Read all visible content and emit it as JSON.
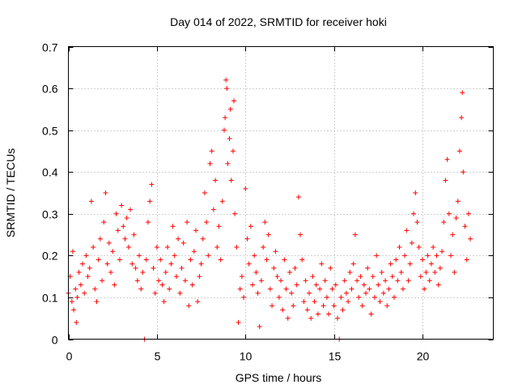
{
  "chart_data": {
    "type": "scatter",
    "title": "Day 014 of 2022, SRMTID for receiver hoki",
    "xlabel": "GPS time / hours",
    "ylabel": "SRMTID / TECUs",
    "xlim": [
      0,
      24
    ],
    "ylim": [
      0,
      0.7
    ],
    "xticks": [
      0,
      5,
      10,
      15,
      20
    ],
    "xtick_labels": [
      "0",
      "5",
      "10",
      "15",
      "20"
    ],
    "yticks": [
      0,
      0.1,
      0.2,
      0.3,
      0.4,
      0.5,
      0.6,
      0.7
    ],
    "ytick_labels": [
      "0",
      "0.1",
      "0.2",
      "0.3",
      "0.4",
      "0.5",
      "0.6",
      "0.7"
    ],
    "grid": true,
    "marker": "plus",
    "color": "#ff0000",
    "series": [
      {
        "name": "SRMTID",
        "points": [
          [
            0.0,
            0.11
          ],
          [
            0.1,
            0.15
          ],
          [
            0.2,
            0.09
          ],
          [
            0.25,
            0.21
          ],
          [
            0.3,
            0.07
          ],
          [
            0.4,
            0.12
          ],
          [
            0.45,
            0.04
          ],
          [
            0.5,
            0.1
          ],
          [
            0.6,
            0.16
          ],
          [
            0.7,
            0.13
          ],
          [
            0.8,
            0.18
          ],
          [
            0.9,
            0.11
          ],
          [
            1.0,
            0.2
          ],
          [
            1.1,
            0.15
          ],
          [
            1.2,
            0.17
          ],
          [
            1.3,
            0.33
          ],
          [
            1.4,
            0.22
          ],
          [
            1.5,
            0.12
          ],
          [
            1.6,
            0.09
          ],
          [
            1.7,
            0.19
          ],
          [
            1.8,
            0.24
          ],
          [
            1.9,
            0.14
          ],
          [
            2.0,
            0.28
          ],
          [
            2.1,
            0.35
          ],
          [
            2.2,
            0.18
          ],
          [
            2.3,
            0.23
          ],
          [
            2.4,
            0.16
          ],
          [
            2.5,
            0.21
          ],
          [
            2.6,
            0.13
          ],
          [
            2.7,
            0.3
          ],
          [
            2.8,
            0.26
          ],
          [
            2.9,
            0.19
          ],
          [
            3.0,
            0.32
          ],
          [
            3.1,
            0.27
          ],
          [
            3.2,
            0.24
          ],
          [
            3.3,
            0.29
          ],
          [
            3.4,
            0.22
          ],
          [
            3.5,
            0.31
          ],
          [
            3.6,
            0.18
          ],
          [
            3.7,
            0.25
          ],
          [
            3.8,
            0.17
          ],
          [
            3.9,
            0.14
          ],
          [
            4.0,
            0.2
          ],
          [
            4.1,
            0.12
          ],
          [
            4.2,
            0.16
          ],
          [
            4.3,
            0.0
          ],
          [
            4.4,
            0.19
          ],
          [
            4.5,
            0.28
          ],
          [
            4.6,
            0.33
          ],
          [
            4.7,
            0.37
          ],
          [
            4.8,
            0.17
          ],
          [
            4.9,
            0.11
          ],
          [
            5.0,
            0.22
          ],
          [
            5.1,
            0.14
          ],
          [
            5.2,
            0.19
          ],
          [
            5.3,
            0.13
          ],
          [
            5.4,
            0.09
          ],
          [
            5.5,
            0.16
          ],
          [
            5.6,
            0.22
          ],
          [
            5.7,
            0.12
          ],
          [
            5.8,
            0.18
          ],
          [
            5.9,
            0.27
          ],
          [
            6.0,
            0.2
          ],
          [
            6.1,
            0.15
          ],
          [
            6.2,
            0.24
          ],
          [
            6.3,
            0.11
          ],
          [
            6.4,
            0.17
          ],
          [
            6.5,
            0.23
          ],
          [
            6.6,
            0.14
          ],
          [
            6.7,
            0.28
          ],
          [
            6.8,
            0.08
          ],
          [
            6.9,
            0.19
          ],
          [
            7.0,
            0.13
          ],
          [
            7.1,
            0.21
          ],
          [
            7.2,
            0.26
          ],
          [
            7.3,
            0.09
          ],
          [
            7.4,
            0.15
          ],
          [
            7.5,
            0.18
          ],
          [
            7.6,
            0.24
          ],
          [
            7.7,
            0.35
          ],
          [
            7.8,
            0.28
          ],
          [
            7.9,
            0.2
          ],
          [
            8.0,
            0.42
          ],
          [
            8.1,
            0.45
          ],
          [
            8.2,
            0.31
          ],
          [
            8.3,
            0.38
          ],
          [
            8.4,
            0.22
          ],
          [
            8.5,
            0.27
          ],
          [
            8.6,
            0.19
          ],
          [
            8.7,
            0.33
          ],
          [
            8.8,
            0.5
          ],
          [
            8.85,
            0.53
          ],
          [
            8.9,
            0.62
          ],
          [
            8.95,
            0.6
          ],
          [
            9.0,
            0.42
          ],
          [
            9.1,
            0.48
          ],
          [
            9.15,
            0.55
          ],
          [
            9.2,
            0.38
          ],
          [
            9.3,
            0.45
          ],
          [
            9.35,
            0.57
          ],
          [
            9.4,
            0.3
          ],
          [
            9.5,
            0.22
          ],
          [
            9.6,
            0.04
          ],
          [
            9.7,
            0.12
          ],
          [
            9.8,
            0.15
          ],
          [
            9.9,
            0.1
          ],
          [
            10.0,
            0.36
          ],
          [
            10.1,
            0.24
          ],
          [
            10.2,
            0.18
          ],
          [
            10.3,
            0.27
          ],
          [
            10.4,
            0.13
          ],
          [
            10.5,
            0.2
          ],
          [
            10.6,
            0.16
          ],
          [
            10.7,
            0.11
          ],
          [
            10.8,
            0.03
          ],
          [
            10.9,
            0.14
          ],
          [
            11.0,
            0.22
          ],
          [
            11.1,
            0.28
          ],
          [
            11.2,
            0.19
          ],
          [
            11.3,
            0.25
          ],
          [
            11.4,
            0.12
          ],
          [
            11.5,
            0.08
          ],
          [
            11.6,
            0.17
          ],
          [
            11.7,
            0.21
          ],
          [
            11.8,
            0.15
          ],
          [
            11.9,
            0.1
          ],
          [
            12.0,
            0.14
          ],
          [
            12.1,
            0.07
          ],
          [
            12.2,
            0.19
          ],
          [
            12.3,
            0.12
          ],
          [
            12.4,
            0.05
          ],
          [
            12.5,
            0.16
          ],
          [
            12.6,
            0.11
          ],
          [
            12.7,
            0.08
          ],
          [
            12.8,
            0.17
          ],
          [
            12.9,
            0.13
          ],
          [
            13.0,
            0.34
          ],
          [
            13.1,
            0.25
          ],
          [
            13.2,
            0.19
          ],
          [
            13.3,
            0.09
          ],
          [
            13.4,
            0.14
          ],
          [
            13.5,
            0.07
          ],
          [
            13.6,
            0.11
          ],
          [
            13.7,
            0.05
          ],
          [
            13.8,
            0.15
          ],
          [
            13.9,
            0.09
          ],
          [
            14.0,
            0.13
          ],
          [
            14.1,
            0.06
          ],
          [
            14.2,
            0.12
          ],
          [
            14.3,
            0.18
          ],
          [
            14.4,
            0.08
          ],
          [
            14.5,
            0.14
          ],
          [
            14.6,
            0.1
          ],
          [
            14.7,
            0.06
          ],
          [
            14.8,
            0.17
          ],
          [
            14.9,
            0.12
          ],
          [
            15.0,
            0.08
          ],
          [
            15.1,
            0.13
          ],
          [
            15.2,
            0.05
          ],
          [
            15.3,
            0.0
          ],
          [
            15.4,
            0.1
          ],
          [
            15.5,
            0.07
          ],
          [
            15.6,
            0.14
          ],
          [
            15.7,
            0.11
          ],
          [
            15.8,
            0.09
          ],
          [
            15.9,
            0.16
          ],
          [
            16.0,
            0.12
          ],
          [
            16.1,
            0.18
          ],
          [
            16.2,
            0.25
          ],
          [
            16.3,
            0.14
          ],
          [
            16.4,
            0.1
          ],
          [
            16.5,
            0.15
          ],
          [
            16.6,
            0.08
          ],
          [
            16.7,
            0.13
          ],
          [
            16.8,
            0.11
          ],
          [
            16.9,
            0.17
          ],
          [
            17.0,
            0.12
          ],
          [
            17.1,
            0.06
          ],
          [
            17.2,
            0.15
          ],
          [
            17.3,
            0.1
          ],
          [
            17.4,
            0.2
          ],
          [
            17.5,
            0.13
          ],
          [
            17.6,
            0.09
          ],
          [
            17.7,
            0.16
          ],
          [
            17.8,
            0.11
          ],
          [
            17.9,
            0.14
          ],
          [
            18.0,
            0.08
          ],
          [
            18.1,
            0.12
          ],
          [
            18.2,
            0.18
          ],
          [
            18.3,
            0.15
          ],
          [
            18.4,
            0.1
          ],
          [
            18.5,
            0.19
          ],
          [
            18.6,
            0.14
          ],
          [
            18.7,
            0.22
          ],
          [
            18.8,
            0.16
          ],
          [
            18.9,
            0.12
          ],
          [
            19.0,
            0.2
          ],
          [
            19.1,
            0.26
          ],
          [
            19.2,
            0.14
          ],
          [
            19.3,
            0.18
          ],
          [
            19.4,
            0.23
          ],
          [
            19.5,
            0.3
          ],
          [
            19.6,
            0.35
          ],
          [
            19.7,
            0.28
          ],
          [
            19.8,
            0.22
          ],
          [
            19.9,
            0.15
          ],
          [
            20.0,
            0.19
          ],
          [
            20.1,
            0.12
          ],
          [
            20.2,
            0.16
          ],
          [
            20.3,
            0.2
          ],
          [
            20.4,
            0.14
          ],
          [
            20.5,
            0.18
          ],
          [
            20.6,
            0.22
          ],
          [
            20.7,
            0.16
          ],
          [
            20.8,
            0.2
          ],
          [
            20.9,
            0.13
          ],
          [
            21.0,
            0.17
          ],
          [
            21.1,
            0.21
          ],
          [
            21.2,
            0.28
          ],
          [
            21.3,
            0.38
          ],
          [
            21.4,
            0.43
          ],
          [
            21.5,
            0.3
          ],
          [
            21.6,
            0.2
          ],
          [
            21.7,
            0.25
          ],
          [
            21.8,
            0.16
          ],
          [
            21.9,
            0.29
          ],
          [
            22.0,
            0.33
          ],
          [
            22.1,
            0.45
          ],
          [
            22.2,
            0.53
          ],
          [
            22.25,
            0.59
          ],
          [
            22.3,
            0.4
          ],
          [
            22.4,
            0.27
          ],
          [
            22.5,
            0.19
          ],
          [
            22.6,
            0.3
          ],
          [
            22.7,
            0.24
          ]
        ]
      }
    ]
  }
}
